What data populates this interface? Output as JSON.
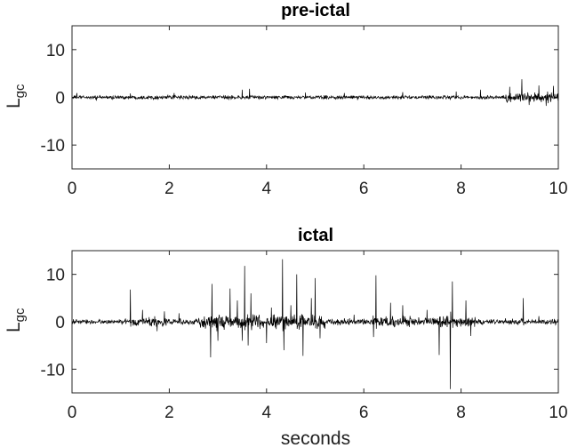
{
  "chart_data": [
    {
      "type": "line",
      "title": "pre-ictal",
      "xlabel": "",
      "ylabel": "L",
      "ylabel_subscript": "gc",
      "xlim": [
        0,
        10
      ],
      "ylim": [
        -15,
        15
      ],
      "x_ticks": [
        0,
        2,
        4,
        6,
        8,
        10
      ],
      "y_ticks": [
        10,
        0,
        -10
      ],
      "x_tick_labels": [
        "0",
        "2",
        "4",
        "6",
        "8",
        "10"
      ],
      "y_tick_labels": [
        "10",
        "0",
        "-10"
      ],
      "series": [
        {
          "noise_amplitude": 0.35,
          "segments": [
            {
              "x_start": 0,
              "x_end": 8.9,
              "amplitude": 0.35
            },
            {
              "x_start": 8.9,
              "x_end": 10,
              "amplitude": 0.9
            }
          ],
          "spikes": [
            {
              "x": 0.1,
              "y": 0.9
            },
            {
              "x": 0.5,
              "y": -0.7
            },
            {
              "x": 1.2,
              "y": 0.8
            },
            {
              "x": 2.1,
              "y": 0.9
            },
            {
              "x": 3.5,
              "y": 1.6
            },
            {
              "x": 3.65,
              "y": 1.8
            },
            {
              "x": 4.8,
              "y": 1.0
            },
            {
              "x": 5.6,
              "y": 0.9
            },
            {
              "x": 6.8,
              "y": 1.1
            },
            {
              "x": 7.9,
              "y": 1.2
            },
            {
              "x": 8.4,
              "y": 1.6
            },
            {
              "x": 9.0,
              "y": 2.2
            },
            {
              "x": 9.25,
              "y": 3.8
            },
            {
              "x": 9.4,
              "y": -1.6
            },
            {
              "x": 9.6,
              "y": 2.5
            },
            {
              "x": 9.75,
              "y": -1.8
            },
            {
              "x": 9.9,
              "y": 2.4
            }
          ]
        }
      ]
    },
    {
      "type": "line",
      "title": "ictal",
      "xlabel": "seconds",
      "ylabel": "L",
      "ylabel_subscript": "gc",
      "xlim": [
        0,
        10
      ],
      "ylim": [
        -15,
        15
      ],
      "x_ticks": [
        0,
        2,
        4,
        6,
        8,
        10
      ],
      "y_ticks": [
        10,
        0,
        -10
      ],
      "x_tick_labels": [
        "0",
        "2",
        "4",
        "6",
        "8",
        "10"
      ],
      "y_tick_labels": [
        "10",
        "0",
        "-10"
      ],
      "series": [
        {
          "noise_amplitude": 0.5,
          "segments": [
            {
              "x_start": 0,
              "x_end": 1.2,
              "amplitude": 0.45
            },
            {
              "x_start": 1.2,
              "x_end": 2.0,
              "amplitude": 0.9
            },
            {
              "x_start": 2.0,
              "x_end": 2.6,
              "amplitude": 0.5
            },
            {
              "x_start": 2.6,
              "x_end": 5.2,
              "amplitude": 1.4
            },
            {
              "x_start": 5.2,
              "x_end": 6.1,
              "amplitude": 0.55
            },
            {
              "x_start": 6.1,
              "x_end": 7.2,
              "amplitude": 1.0
            },
            {
              "x_start": 7.2,
              "x_end": 8.3,
              "amplitude": 0.9
            },
            {
              "x_start": 8.3,
              "x_end": 10,
              "amplitude": 0.5
            }
          ],
          "spikes": [
            {
              "x": 1.2,
              "y": 6.8
            },
            {
              "x": 1.45,
              "y": 2.5
            },
            {
              "x": 1.75,
              "y": -2.0
            },
            {
              "x": 1.9,
              "y": 2.2
            },
            {
              "x": 2.2,
              "y": 1.8
            },
            {
              "x": 2.85,
              "y": -7.5
            },
            {
              "x": 2.88,
              "y": 8.0
            },
            {
              "x": 3.0,
              "y": -4.0
            },
            {
              "x": 3.25,
              "y": 7.0
            },
            {
              "x": 3.4,
              "y": 4.5
            },
            {
              "x": 3.5,
              "y": -4.0
            },
            {
              "x": 3.55,
              "y": 11.8
            },
            {
              "x": 3.62,
              "y": -5.0
            },
            {
              "x": 3.68,
              "y": 6.0
            },
            {
              "x": 4.0,
              "y": -4.5
            },
            {
              "x": 4.1,
              "y": 3.0
            },
            {
              "x": 4.33,
              "y": 13.2
            },
            {
              "x": 4.36,
              "y": -6.0
            },
            {
              "x": 4.5,
              "y": 3.5
            },
            {
              "x": 4.62,
              "y": 10.0
            },
            {
              "x": 4.75,
              "y": -7.2
            },
            {
              "x": 4.92,
              "y": 5.0
            },
            {
              "x": 5.0,
              "y": 9.2
            },
            {
              "x": 5.1,
              "y": -3.5
            },
            {
              "x": 5.8,
              "y": 1.5
            },
            {
              "x": 6.2,
              "y": -3.2
            },
            {
              "x": 6.25,
              "y": 9.8
            },
            {
              "x": 6.55,
              "y": 4.0
            },
            {
              "x": 6.8,
              "y": 3.5
            },
            {
              "x": 7.3,
              "y": 2.5
            },
            {
              "x": 7.55,
              "y": -7.0
            },
            {
              "x": 7.78,
              "y": -14.2
            },
            {
              "x": 7.82,
              "y": 8.5
            },
            {
              "x": 8.1,
              "y": 4.5
            },
            {
              "x": 8.2,
              "y": -3.0
            },
            {
              "x": 9.28,
              "y": 5.0
            },
            {
              "x": 9.6,
              "y": 1.2
            }
          ]
        }
      ]
    }
  ]
}
